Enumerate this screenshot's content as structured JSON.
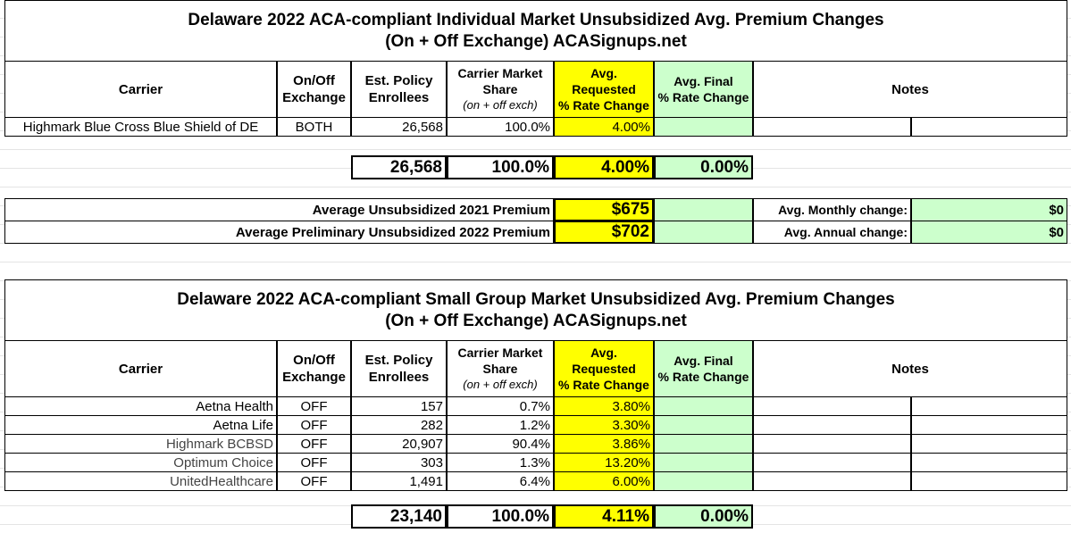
{
  "sections": [
    {
      "title": [
        "Delaware 2022 ACA-compliant Individual Market Unsubsidized Avg. Premium Changes",
        "(On + Off Exchange) ACASignups.net"
      ],
      "header": [
        [
          "Carrier"
        ],
        [
          "On/Off",
          "Exchange"
        ],
        [
          "Est. Policy",
          "Enrollees"
        ],
        [
          "Carrier Market",
          "Share",
          "(on + off exch)"
        ],
        [
          "Avg.",
          "Requested",
          "% Rate Change"
        ],
        [
          "Avg. Final",
          "% Rate Change"
        ],
        [
          "Notes"
        ]
      ],
      "rows": [
        [
          "Highmark Blue Cross Blue Shield of DE",
          "BOTH",
          "26,568",
          "100.0%",
          "4.00%"
        ]
      ],
      "total": [
        "26,568",
        "100.0%",
        "4.00%",
        "0.00%"
      ]
    },
    {
      "title": [
        "Delaware 2022 ACA-compliant Small Group Market Unsubsidized Avg. Premium Changes",
        "(On + Off Exchange) ACASignups.net"
      ],
      "header": [
        [
          "Carrier"
        ],
        [
          "On/Off",
          "Exchange"
        ],
        [
          "Est. Policy",
          "Enrollees"
        ],
        [
          "Carrier Market",
          "Share",
          "(on + off exch)"
        ],
        [
          "Avg.",
          "Requested",
          "% Rate Change"
        ],
        [
          "Avg. Final",
          "% Rate Change"
        ],
        [
          "Notes"
        ]
      ],
      "rows": [
        [
          "Aetna Health",
          "OFF",
          "157",
          "0.7%",
          "3.80%"
        ],
        [
          "Aetna Life",
          "OFF",
          "282",
          "1.2%",
          "3.30%"
        ],
        [
          "Highmark BCBSD",
          "OFF",
          "20,907",
          "90.4%",
          "3.86%"
        ],
        [
          "Optimum Choice",
          "OFF",
          "303",
          "1.3%",
          "13.20%"
        ],
        [
          "UnitedHealthcare",
          "OFF",
          "1,491",
          "6.4%",
          "6.00%"
        ]
      ],
      "total": [
        "23,140",
        "100.0%",
        "4.11%",
        "0.00%"
      ]
    }
  ],
  "premiums": [
    {
      "label": "Average Unsubsidized 2021 Premium",
      "value": "$675",
      "change_label": "Avg. Monthly change:",
      "change": "$0"
    },
    {
      "label": "Average Preliminary Unsubsidized 2022 Premium",
      "value": "$702",
      "change_label": "Avg. Annual change:",
      "change": "$0"
    }
  ]
}
